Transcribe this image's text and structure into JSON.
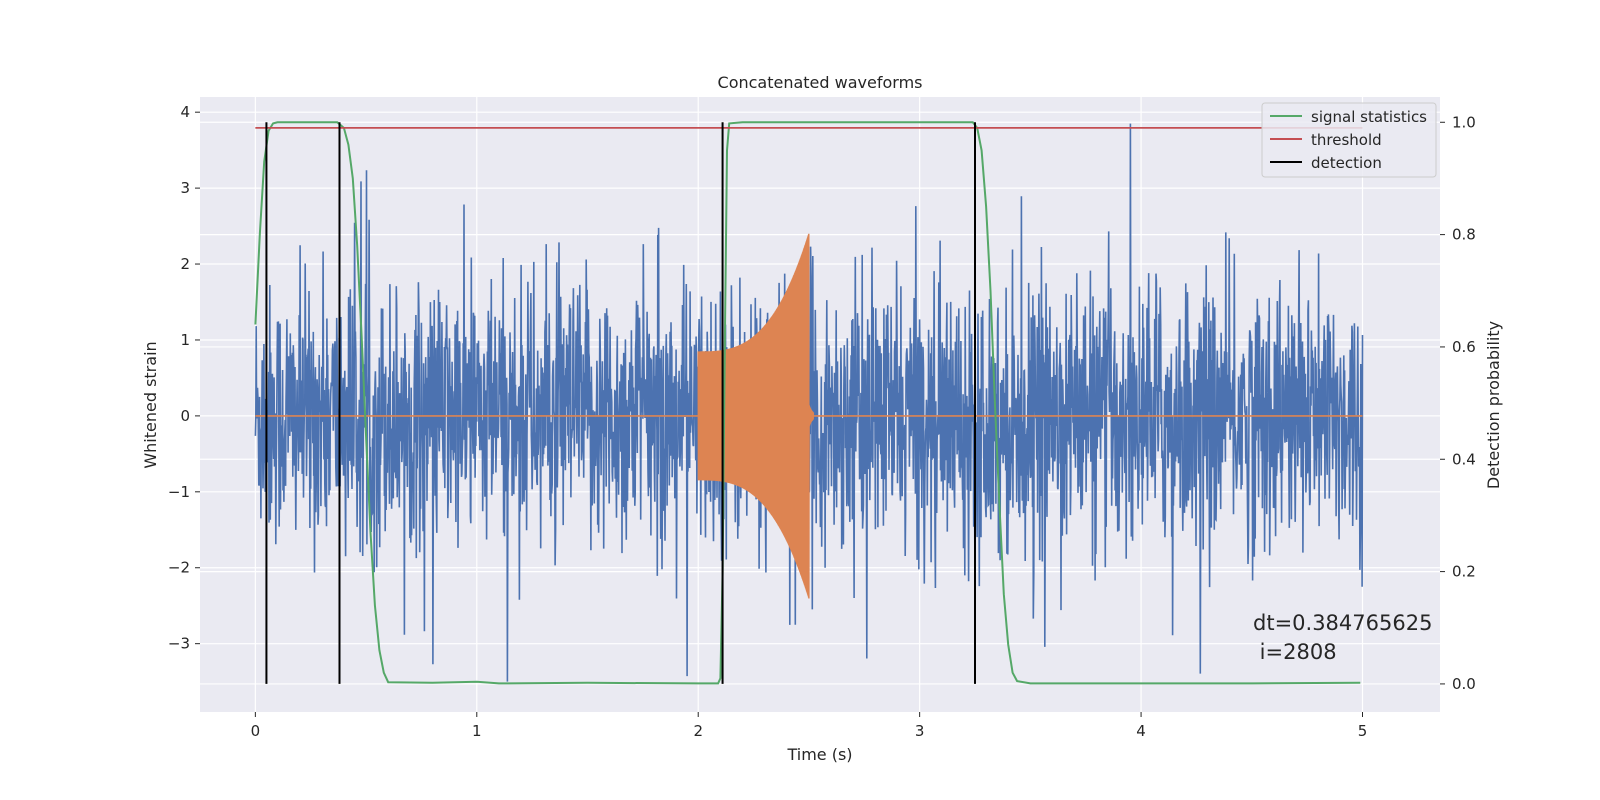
{
  "chart_data": {
    "type": "line",
    "title": "Concatenated waveforms",
    "xlabel": "Time (s)",
    "ylabel": "Whitened strain",
    "y2label": "Detection probability",
    "xlim": [
      -0.25,
      5.35
    ],
    "ylim": [
      -3.9,
      4.2
    ],
    "y2lim": [
      -0.05,
      1.045
    ],
    "xticks": [
      0,
      1,
      2,
      3,
      4,
      5
    ],
    "yticks": [
      -3,
      -2,
      -1,
      0,
      1,
      2,
      3,
      4
    ],
    "y2ticks": [
      0.0,
      0.2,
      0.4,
      0.6,
      0.8,
      1.0
    ],
    "xtick_labels": [
      "0",
      "1",
      "2",
      "3",
      "4",
      "5"
    ],
    "ytick_labels": [
      "−3",
      "−2",
      "−1",
      "0",
      "1",
      "2",
      "3",
      "4"
    ],
    "y2tick_labels": [
      "0.0",
      "0.2",
      "0.4",
      "0.6",
      "0.8",
      "1.0"
    ],
    "grid": true,
    "legend_position": "top-right",
    "colors": {
      "strain": "#4c72b0",
      "injection": "#dd8452",
      "signal_statistics": "#55a868",
      "threshold": "#c44e52",
      "detection": "#000000",
      "background": "#eaeaf2",
      "grid": "#ffffff"
    },
    "series": [
      {
        "name": "signal statistics",
        "axis": "right",
        "x": [
          0,
          0.02,
          0.04,
          0.06,
          0.08,
          0.1,
          0.2,
          0.3,
          0.37,
          0.4,
          0.42,
          0.44,
          0.46,
          0.48,
          0.5,
          0.52,
          0.54,
          0.56,
          0.58,
          0.6,
          0.8,
          1.0,
          1.1,
          1.5,
          2.0,
          2.09,
          2.1,
          2.11,
          2.12,
          2.13,
          2.14,
          2.2,
          2.5,
          3.0,
          3.24,
          3.26,
          3.28,
          3.3,
          3.32,
          3.34,
          3.36,
          3.38,
          3.4,
          3.42,
          3.44,
          3.5,
          4.0,
          4.5,
          4.99
        ],
        "values": [
          0.64,
          0.8,
          0.93,
          0.985,
          0.998,
          1.0,
          1.0,
          1.0,
          1.0,
          0.99,
          0.96,
          0.9,
          0.78,
          0.62,
          0.44,
          0.27,
          0.14,
          0.06,
          0.02,
          0.003,
          0.002,
          0.004,
          0.001,
          0.002,
          0.001,
          0.001,
          0.01,
          0.2,
          0.6,
          0.95,
          0.998,
          1.0,
          1.0,
          1.0,
          1.0,
          0.99,
          0.95,
          0.85,
          0.7,
          0.5,
          0.32,
          0.16,
          0.07,
          0.02,
          0.005,
          0.001,
          0.001,
          0.001,
          0.002
        ]
      },
      {
        "name": "threshold",
        "axis": "right",
        "x": [
          0,
          5
        ],
        "values": [
          0.99,
          0.99
        ]
      },
      {
        "name": "detection",
        "axis": "right",
        "type": "vlines",
        "x": [
          0.05,
          0.38,
          2.11,
          3.25
        ],
        "ymin": 0,
        "ymax": 1
      }
    ],
    "strain_noise": {
      "axis": "left",
      "x_range": [
        0,
        5
      ],
      "typical_peak_range": [
        -2.9,
        3.85
      ]
    },
    "injected_waveform": {
      "axis": "left",
      "x_range": [
        2.0,
        2.52
      ],
      "envelope_start": 0.85,
      "envelope_peak": 2.6
    },
    "annotation": {
      "dt_text": "dt=0.384765625",
      "i_text": " i=2808"
    }
  }
}
